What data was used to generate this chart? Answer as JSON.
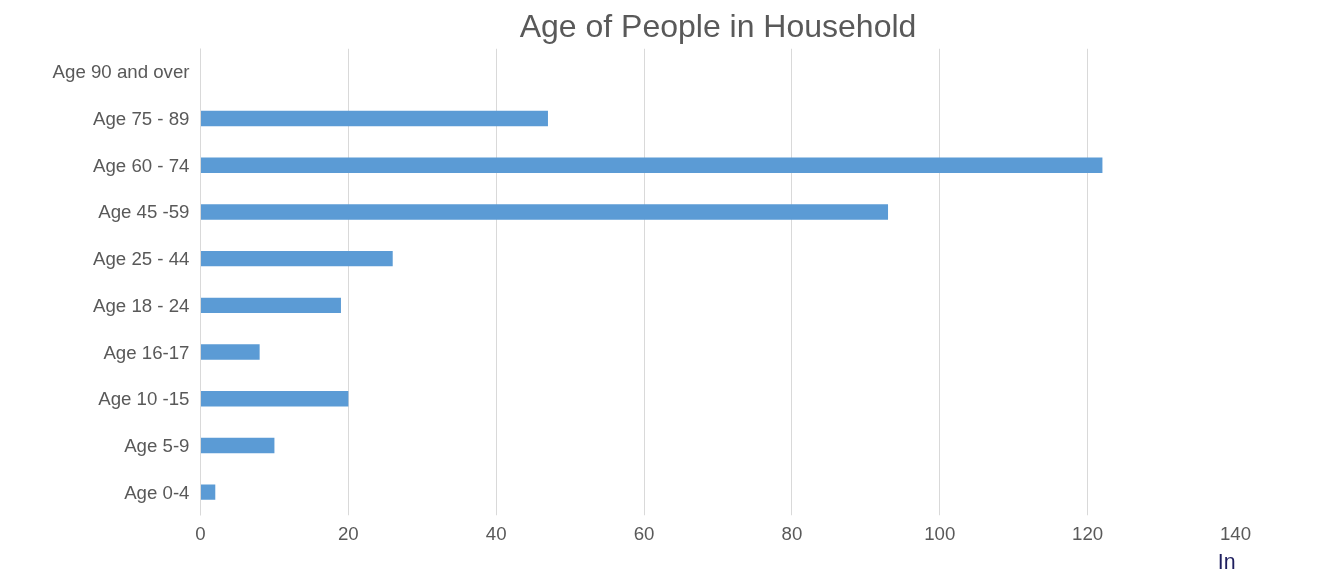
{
  "chart_data": {
    "type": "bar",
    "orientation": "horizontal",
    "title": "Age of People in Household",
    "categories": [
      "Age 90 and over",
      "Age 75 - 89",
      "Age 60 - 74",
      "Age 45 -59",
      "Age 25 - 44",
      "Age 18 - 24",
      "Age 16-17",
      "Age 10 -15",
      "Age 5-9",
      "Age 0-4"
    ],
    "values": [
      0,
      47,
      122,
      93,
      26,
      19,
      8,
      20,
      10,
      2
    ],
    "color": "#5b9bd5",
    "xlim": [
      0,
      140
    ],
    "xticks": [
      0,
      20,
      40,
      60,
      80,
      100,
      120,
      140
    ],
    "grid": "x",
    "annotations": [
      "In"
    ]
  }
}
